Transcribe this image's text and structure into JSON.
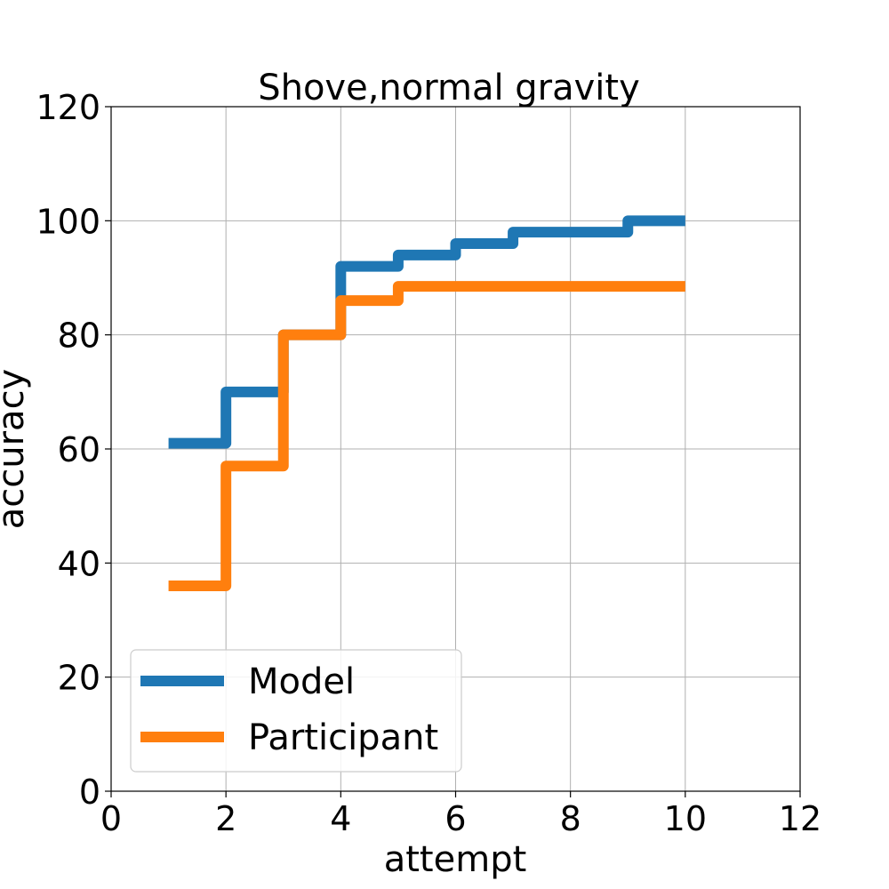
{
  "chart_data": {
    "type": "line",
    "title": "Shove,normal gravity",
    "xlabel": "attempt",
    "ylabel": "accuracy",
    "xlim": [
      0,
      12
    ],
    "ylim": [
      0,
      120
    ],
    "xticks": [
      0,
      2,
      4,
      6,
      8,
      10,
      12
    ],
    "yticks": [
      0,
      20,
      40,
      60,
      80,
      100,
      120
    ],
    "xtick_labels": [
      "0",
      "2",
      "4",
      "6",
      "8",
      "10",
      "12"
    ],
    "ytick_labels": [
      "0",
      "20",
      "40",
      "60",
      "80",
      "100",
      "120"
    ],
    "grid": true,
    "step": "post",
    "legend_position": "lower-left",
    "series": [
      {
        "name": "Model",
        "color": "#1f77b4",
        "x": [
          1,
          2,
          3,
          4,
          5,
          6,
          7,
          8,
          9,
          10
        ],
        "y": [
          61,
          70,
          80,
          92,
          94,
          96,
          98,
          98,
          100,
          100
        ]
      },
      {
        "name": "Participant",
        "color": "#ff7f0e",
        "x": [
          1,
          2,
          3,
          4,
          5,
          6,
          7,
          8,
          9,
          10
        ],
        "y": [
          36,
          57,
          80,
          86,
          88.5,
          88.5,
          88.5,
          88.5,
          88.5,
          88.5
        ]
      }
    ]
  }
}
